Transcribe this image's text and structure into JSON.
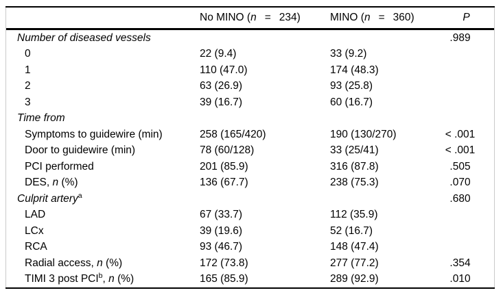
{
  "colors": {
    "background": "#ffffff",
    "text": "#000000",
    "rule": "#000000",
    "side_border": "#c9c9c9"
  },
  "header": {
    "col1": "",
    "col2": {
      "prefix": "No MINO (",
      "n": "n",
      "eq": "=",
      "count": "234)"
    },
    "col3": {
      "prefix": "MINO (",
      "n": "n",
      "eq": "=",
      "count": "360)"
    },
    "p": "P"
  },
  "rows": [
    {
      "label": [
        {
          "t": "Number of diseased vessels",
          "it": true
        }
      ],
      "indent": false,
      "c2": "",
      "c3": "",
      "p": ".989"
    },
    {
      "label": [
        {
          "t": "0"
        }
      ],
      "indent": true,
      "c2": "22 (9.4)",
      "c3": "33 (9.2)",
      "p": ""
    },
    {
      "label": [
        {
          "t": "1"
        }
      ],
      "indent": true,
      "c2": "110 (47.0)",
      "c3": "174 (48.3)",
      "p": ""
    },
    {
      "label": [
        {
          "t": "2"
        }
      ],
      "indent": true,
      "c2": "63 (26.9)",
      "c3": "93 (25.8)",
      "p": ""
    },
    {
      "label": [
        {
          "t": "3"
        }
      ],
      "indent": true,
      "c2": "39 (16.7)",
      "c3": "60 (16.7)",
      "p": ""
    },
    {
      "label": [
        {
          "t": "Time from",
          "it": true
        }
      ],
      "indent": false,
      "c2": "",
      "c3": "",
      "p": ""
    },
    {
      "label": [
        {
          "t": "Symptoms to guidewire (min)"
        }
      ],
      "indent": true,
      "c2": "258 (165/420)",
      "c3": "190 (130/270)",
      "p": "< .001"
    },
    {
      "label": [
        {
          "t": "Door to guidewire (min)"
        }
      ],
      "indent": true,
      "c2": "78 (60/128)",
      "c3": "33 (25/41)",
      "p": "< .001"
    },
    {
      "label": [
        {
          "t": "PCI performed"
        }
      ],
      "indent": true,
      "c2": "201 (85.9)",
      "c3": "316 (87.8)",
      "p": ".505"
    },
    {
      "label": [
        {
          "t": "DES, "
        },
        {
          "t": "n",
          "it": true
        },
        {
          "t": " (%)"
        }
      ],
      "indent": true,
      "c2": "136 (67.7)",
      "c3": "238 (75.3)",
      "p": ".070"
    },
    {
      "label": [
        {
          "t": "Culprit artery",
          "it": true
        },
        {
          "t": "a",
          "sup": true
        }
      ],
      "indent": false,
      "c2": "",
      "c3": "",
      "p": ".680"
    },
    {
      "label": [
        {
          "t": "LAD"
        }
      ],
      "indent": true,
      "c2": "67 (33.7)",
      "c3": "112 (35.9)",
      "p": ""
    },
    {
      "label": [
        {
          "t": "LCx"
        }
      ],
      "indent": true,
      "c2": "39 (19.6)",
      "c3": "52 (16.7)",
      "p": ""
    },
    {
      "label": [
        {
          "t": "RCA"
        }
      ],
      "indent": true,
      "c2": "93 (46.7)",
      "c3": "148 (47.4)",
      "p": ""
    },
    {
      "label": [
        {
          "t": "Radial access, "
        },
        {
          "t": "n",
          "it": true
        },
        {
          "t": " (%)"
        }
      ],
      "indent": true,
      "c2": "172 (73.8)",
      "c3": "277 (77.2)",
      "p": ".354"
    },
    {
      "label": [
        {
          "t": "TIMI 3 post PCI"
        },
        {
          "t": "b",
          "sup": true
        },
        {
          "t": ", "
        },
        {
          "t": "n",
          "it": true
        },
        {
          "t": " (%)"
        }
      ],
      "indent": true,
      "c2": "165 (85.9)",
      "c3": "289 (92.9)",
      "p": ".010"
    }
  ]
}
